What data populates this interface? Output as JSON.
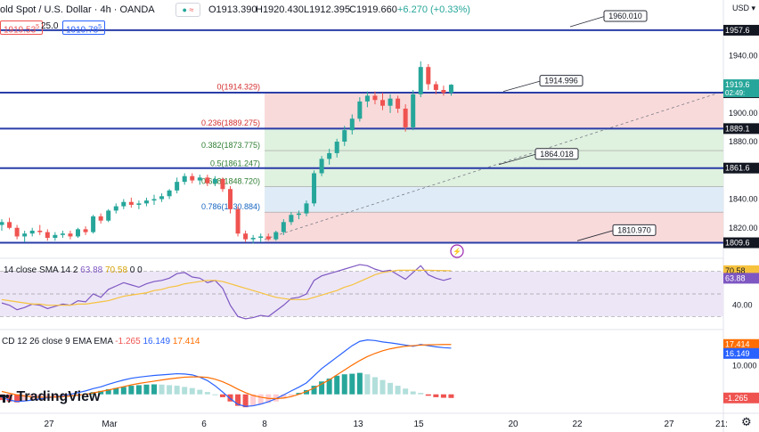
{
  "header": {
    "title": "old Spot / U.S. Dollar · 4h · OANDA",
    "open": "O1913.390",
    "high": "H1920.430",
    "low": "L1912.395",
    "close": "C1919.660",
    "change": "+6.270 (+0.33%)",
    "sell_price": "1919.53",
    "sell_suffix": "5",
    "spread": "25.0",
    "buy_price": "1919.78",
    "buy_suffix": "5",
    "currency": "USD"
  },
  "logo": "TradingView",
  "indicators": {
    "rsi_label": "14 close SMA 14 2",
    "rsi_value": "63.88",
    "rsi_ma_value": "70.58",
    "rsi_extra": "0 0",
    "macd_label": "CD 12 26 close 9 EMA EMA",
    "macd_hist": "-1.265",
    "macd_line": "16.149",
    "macd_signal": "17.414"
  },
  "colors": {
    "up": "#26a69a",
    "down": "#ef5350",
    "level_line": "#2a3da8",
    "fib_red": "#f8d6d6",
    "fib_green": "#dcefdc",
    "fib_blue": "#dbeaf6",
    "rsi_band": "#ede6f7",
    "rsi_line": "#7e57c2",
    "rsi_ma": "#f6c23e",
    "macd_line": "#2962ff",
    "signal_line": "#ff6d00"
  },
  "chart_data": {
    "type": "candlestick",
    "x_ticks": [
      "27",
      "Mar",
      "6",
      "8",
      "13",
      "15",
      "20",
      "22",
      "27",
      "21:"
    ],
    "price_axis": {
      "ylim": [
        1800,
        1965
      ],
      "tick_labels": [
        "1940.00",
        "1900.00",
        "1880.00",
        "1840.00",
        "1820.00"
      ],
      "tick_values": [
        1940,
        1900,
        1880,
        1840,
        1820
      ]
    },
    "horizontal_levels": [
      {
        "value": 1957.6,
        "label": "1957.6"
      },
      {
        "value": 1914.1,
        "label": "1914.1"
      },
      {
        "value": 1889.1,
        "label": "1889.1"
      },
      {
        "value": 1861.6,
        "label": "1861.6"
      },
      {
        "value": 1809.6,
        "label": "1809.6"
      }
    ],
    "current_price": {
      "label": "1919.6",
      "countdown": "02:49:"
    },
    "callouts": [
      {
        "label": "1960.010",
        "value": 1960.01
      },
      {
        "label": "1914.996",
        "value": 1914.996
      },
      {
        "label": "1864.018",
        "value": 1864.018
      },
      {
        "label": "1810.970",
        "value": 1810.97
      }
    ],
    "fibonacci": [
      {
        "ratio": "0",
        "label": "0(1914.329)",
        "value": 1914.329
      },
      {
        "ratio": "0.236",
        "label": "0.236(1889.275)",
        "value": 1889.275
      },
      {
        "ratio": "0.382",
        "label": "0.382(1873.775)",
        "value": 1873.775
      },
      {
        "ratio": "0.5",
        "label": "0.5(1861.247)",
        "value": 1861.247
      },
      {
        "ratio": "0.618",
        "label": "0.618(1848.720)",
        "value": 1848.72
      },
      {
        "ratio": "0.786",
        "label": "0.786(1830.884)",
        "value": 1830.884
      },
      {
        "ratio": "1",
        "label": "",
        "value": 1809.6
      }
    ],
    "candles": [
      [
        1822,
        1826,
        1818,
        1824
      ],
      [
        1824,
        1827,
        1819,
        1820
      ],
      [
        1820,
        1822,
        1812,
        1814
      ],
      [
        1814,
        1818,
        1810,
        1816
      ],
      [
        1816,
        1820,
        1814,
        1818
      ],
      [
        1818,
        1822,
        1815,
        1817
      ],
      [
        1817,
        1819,
        1811,
        1813
      ],
      [
        1813,
        1817,
        1811,
        1815
      ],
      [
        1815,
        1818,
        1813,
        1816
      ],
      [
        1816,
        1818,
        1812,
        1814
      ],
      [
        1814,
        1820,
        1813,
        1819
      ],
      [
        1819,
        1821,
        1815,
        1817
      ],
      [
        1817,
        1829,
        1816,
        1828
      ],
      [
        1828,
        1830,
        1823,
        1825
      ],
      [
        1825,
        1833,
        1824,
        1832
      ],
      [
        1832,
        1837,
        1830,
        1835
      ],
      [
        1835,
        1840,
        1833,
        1838
      ],
      [
        1838,
        1841,
        1834,
        1836
      ],
      [
        1836,
        1839,
        1833,
        1837
      ],
      [
        1837,
        1841,
        1835,
        1839
      ],
      [
        1839,
        1843,
        1836,
        1840
      ],
      [
        1840,
        1844,
        1838,
        1842
      ],
      [
        1842,
        1847,
        1840,
        1846
      ],
      [
        1846,
        1855,
        1844,
        1852
      ],
      [
        1852,
        1858,
        1850,
        1856
      ],
      [
        1856,
        1858,
        1851,
        1853
      ],
      [
        1853,
        1857,
        1850,
        1855
      ],
      [
        1855,
        1857,
        1849,
        1851
      ],
      [
        1851,
        1856,
        1849,
        1854
      ],
      [
        1854,
        1855,
        1845,
        1847
      ],
      [
        1847,
        1849,
        1830,
        1833
      ],
      [
        1833,
        1835,
        1814,
        1816
      ],
      [
        1816,
        1818,
        1810,
        1812
      ],
      [
        1812,
        1815,
        1809,
        1813
      ],
      [
        1813,
        1816,
        1810,
        1814
      ],
      [
        1814,
        1816,
        1811,
        1812
      ],
      [
        1812,
        1818,
        1811,
        1817
      ],
      [
        1817,
        1826,
        1815,
        1824
      ],
      [
        1824,
        1831,
        1822,
        1829
      ],
      [
        1829,
        1832,
        1826,
        1830
      ],
      [
        1830,
        1839,
        1828,
        1837
      ],
      [
        1837,
        1860,
        1835,
        1858
      ],
      [
        1858,
        1870,
        1856,
        1868
      ],
      [
        1868,
        1875,
        1864,
        1872
      ],
      [
        1872,
        1882,
        1869,
        1880
      ],
      [
        1880,
        1891,
        1877,
        1888
      ],
      [
        1888,
        1899,
        1885,
        1896
      ],
      [
        1896,
        1911,
        1894,
        1908
      ],
      [
        1908,
        1915,
        1904,
        1912
      ],
      [
        1912,
        1915,
        1906,
        1909
      ],
      [
        1909,
        1914,
        1902,
        1905
      ],
      [
        1905,
        1913,
        1900,
        1910
      ],
      [
        1910,
        1912,
        1900,
        1903
      ],
      [
        1903,
        1906,
        1887,
        1890
      ],
      [
        1890,
        1916,
        1888,
        1913
      ],
      [
        1913,
        1936,
        1911,
        1932
      ],
      [
        1932,
        1934,
        1916,
        1920
      ],
      [
        1920,
        1922,
        1913,
        1916
      ],
      [
        1916,
        1919,
        1912,
        1914
      ],
      [
        1914,
        1920,
        1912,
        1919.66
      ]
    ],
    "rsi": {
      "ylim": [
        20,
        80
      ],
      "band": [
        30,
        70
      ],
      "tick_labels": [
        "70.58",
        "63.88",
        "40.00"
      ],
      "rsi_values": [
        42,
        40,
        36,
        38,
        41,
        40,
        37,
        39,
        41,
        40,
        44,
        43,
        50,
        47,
        54,
        57,
        60,
        58,
        56,
        59,
        61,
        62,
        64,
        68,
        69,
        65,
        64,
        60,
        62,
        55,
        40,
        30,
        28,
        29,
        31,
        30,
        35,
        40,
        46,
        47,
        50,
        62,
        66,
        68,
        70,
        72,
        74,
        76,
        75,
        72,
        70,
        71,
        67,
        63,
        69,
        75,
        67,
        64,
        62,
        63.88
      ],
      "ma_values": [
        45,
        44,
        43,
        42,
        41,
        41,
        40,
        40,
        40,
        40,
        41,
        41,
        42,
        43,
        44,
        46,
        48,
        49,
        50,
        51,
        53,
        54,
        56,
        57,
        59,
        60,
        61,
        62,
        62,
        61,
        59,
        57,
        55,
        53,
        51,
        49,
        47,
        46,
        45,
        45,
        45,
        47,
        49,
        51,
        53,
        56,
        58,
        61,
        64,
        67,
        69,
        70,
        71,
        71,
        71,
        71,
        71,
        70.8,
        70.7,
        70.58
      ]
    },
    "macd": {
      "ylim": [
        -6,
        22
      ],
      "tick_labels": [
        "17.414",
        "16.149",
        "10.000",
        "-1.265"
      ],
      "histogram": [
        -2,
        -2.5,
        -2.8,
        -2.5,
        -2,
        -1.8,
        -1.5,
        -1.3,
        -1,
        -0.6,
        -0.2,
        0.3,
        0.8,
        1.2,
        1.8,
        2.2,
        2.6,
        3,
        3.2,
        3.4,
        3.5,
        3.4,
        3.2,
        3,
        2.6,
        2.2,
        1.6,
        0.8,
        0,
        -1,
        -2.5,
        -4,
        -4.5,
        -4,
        -3.5,
        -3,
        -2.5,
        -1.5,
        -0.5,
        0.5,
        1.5,
        3,
        4.5,
        5.5,
        6.5,
        7,
        7.2,
        7.5,
        7,
        6,
        5,
        4,
        3,
        2,
        1,
        0.5,
        -0.5,
        -1,
        -1.2,
        -1.265
      ],
      "macd_line": [
        -1,
        -2,
        -2.5,
        -2.3,
        -2,
        -1.6,
        -1.2,
        -0.9,
        -0.5,
        0,
        0.6,
        1.2,
        2,
        2.6,
        3.5,
        4.3,
        5,
        5.6,
        6,
        6.3,
        6.6,
        6.8,
        7,
        7.2,
        7.1,
        6.8,
        6,
        4.8,
        3,
        0.8,
        -1.5,
        -3.5,
        -4.2,
        -4,
        -3.4,
        -2.6,
        -1.5,
        -0.2,
        1.2,
        2.5,
        4,
        6.5,
        9,
        11,
        13,
        15,
        17,
        18.5,
        19,
        18.8,
        18.3,
        18,
        17.6,
        17.2,
        16.8,
        17.4,
        17,
        16.6,
        16.3,
        16.149
      ],
      "signal_line": [
        1,
        0.4,
        -0.2,
        -0.6,
        -0.9,
        -1,
        -1,
        -0.9,
        -0.8,
        -0.6,
        -0.3,
        0,
        0.5,
        1,
        1.5,
        2.1,
        2.7,
        3.3,
        3.8,
        4.2,
        4.6,
        5,
        5.4,
        5.7,
        6,
        6.1,
        6.1,
        5.9,
        5.3,
        4.4,
        3.2,
        1.8,
        0.6,
        -0.4,
        -1,
        -1.4,
        -1.5,
        -1.3,
        -0.8,
        0,
        1,
        2.2,
        3.6,
        5.1,
        6.8,
        8.5,
        10.2,
        11.8,
        13.2,
        14.3,
        15.2,
        15.9,
        16.4,
        16.8,
        17,
        17.2,
        17.3,
        17.35,
        17.4,
        17.414
      ]
    }
  }
}
